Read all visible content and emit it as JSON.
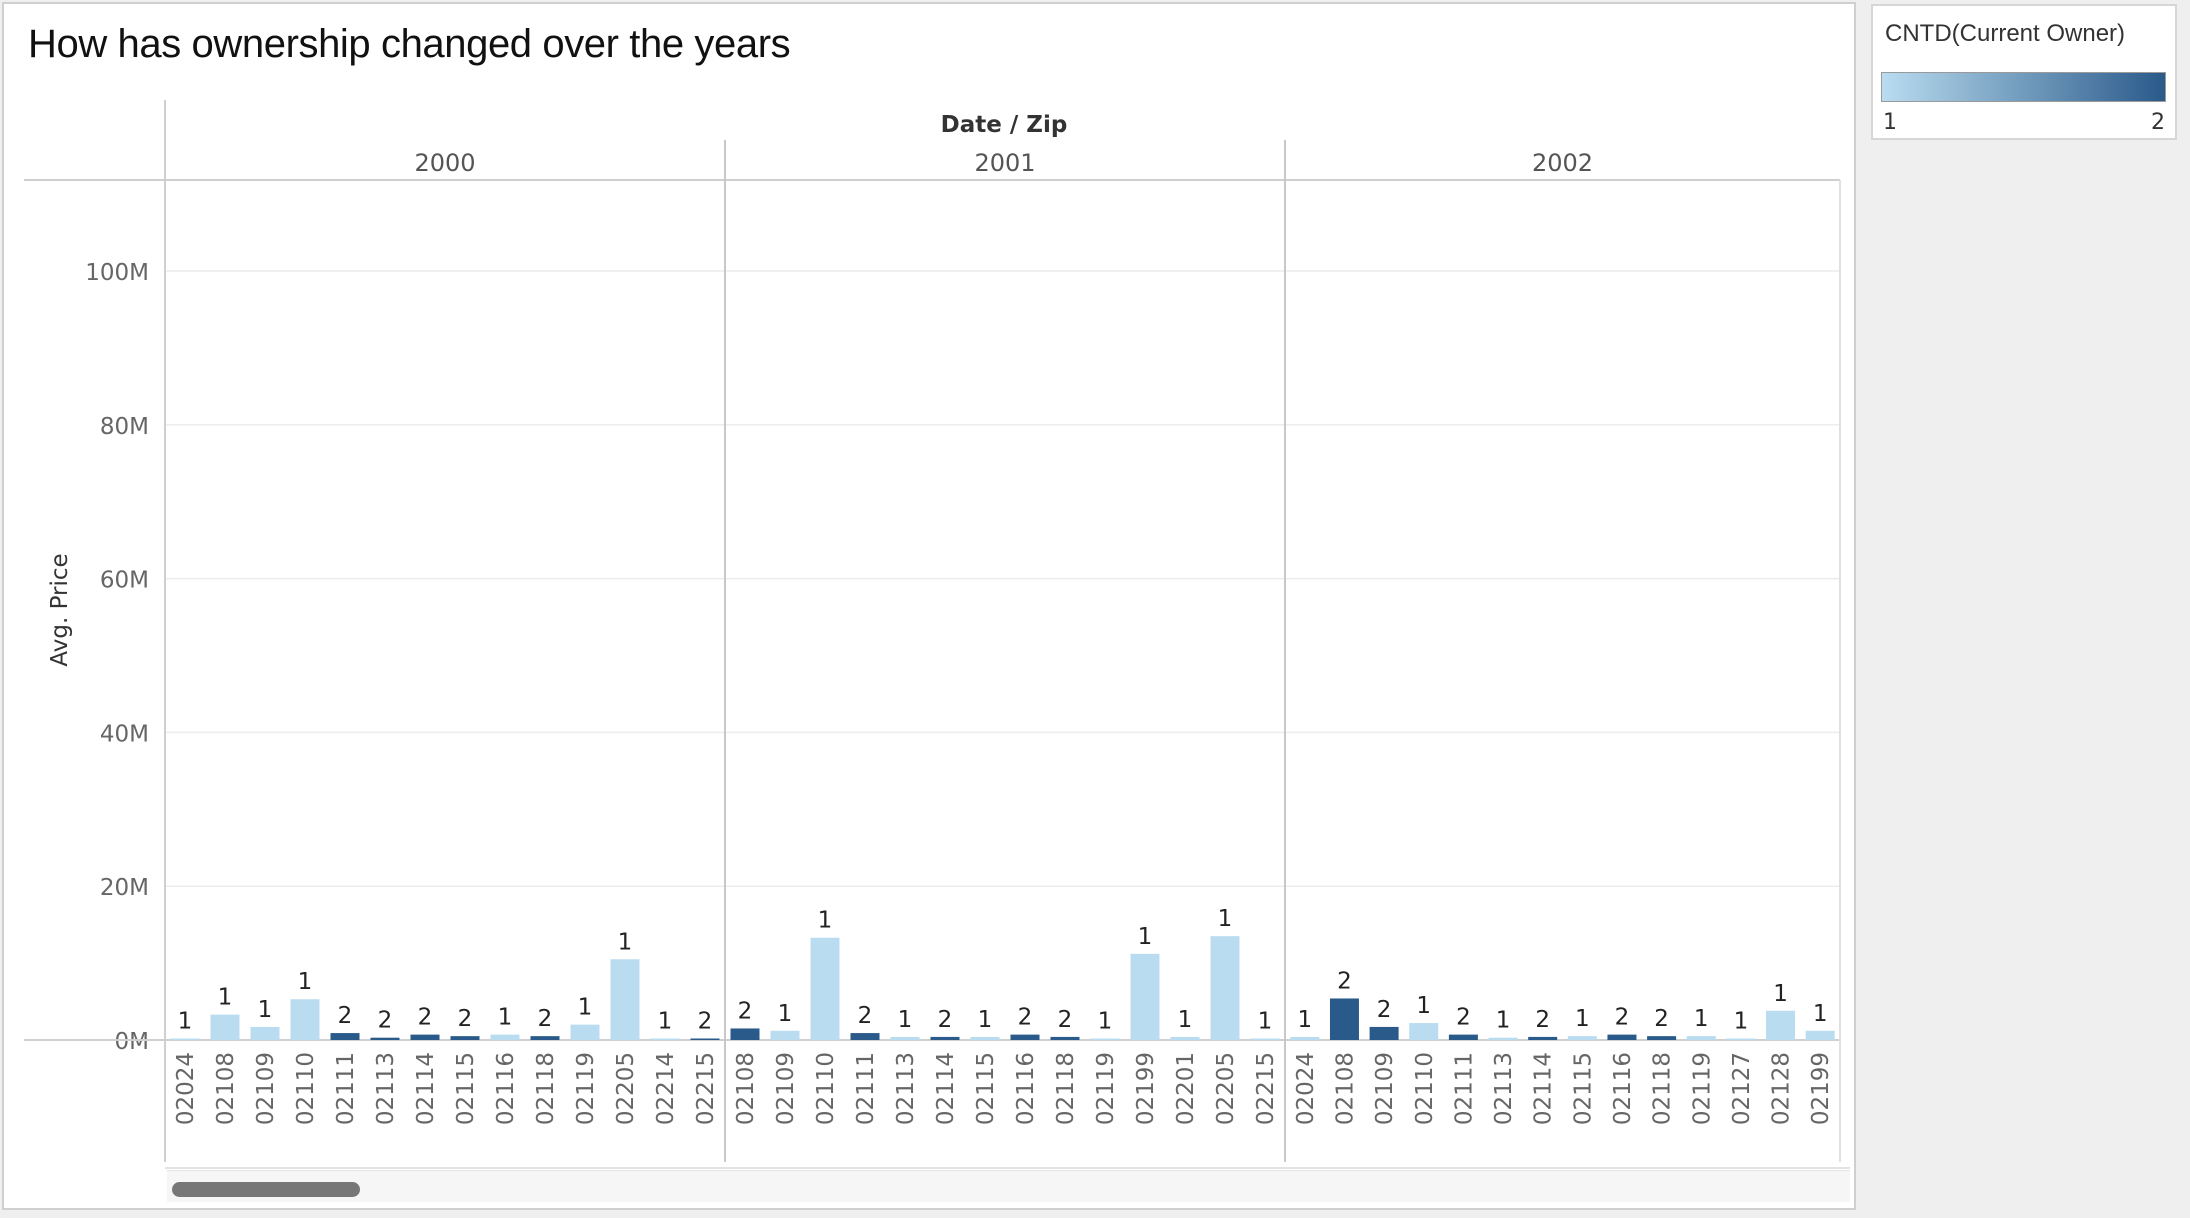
{
  "title": "How has ownership changed over the years",
  "legend": {
    "title": "CNTD(Current Owner)",
    "min_label": "1",
    "max_label": "2",
    "color_low": "#b9dcf0",
    "color_high": "#2a5a8a"
  },
  "chart_data": {
    "type": "bar",
    "title": "How has ownership changed over the years",
    "column_header": "Date / Zip",
    "ylabel": "Avg. Price",
    "ylim": [
      0,
      110000000
    ],
    "yticks": [
      0,
      20000000,
      40000000,
      60000000,
      80000000,
      100000000
    ],
    "ytick_labels": [
      "0M",
      "20M",
      "40M",
      "60M",
      "80M",
      "100M"
    ],
    "grid": true,
    "legend_position": "top-right",
    "panels": [
      {
        "year": "2000",
        "bars": [
          {
            "zip": "02024",
            "value": 100000,
            "count": 1
          },
          {
            "zip": "02108",
            "value": 3300000,
            "count": 1
          },
          {
            "zip": "02109",
            "value": 1700000,
            "count": 1
          },
          {
            "zip": "02110",
            "value": 5300000,
            "count": 1
          },
          {
            "zip": "02111",
            "value": 900000,
            "count": 2
          },
          {
            "zip": "02113",
            "value": 300000,
            "count": 2
          },
          {
            "zip": "02114",
            "value": 700000,
            "count": 2
          },
          {
            "zip": "02115",
            "value": 500000,
            "count": 2
          },
          {
            "zip": "02116",
            "value": 700000,
            "count": 1
          },
          {
            "zip": "02118",
            "value": 500000,
            "count": 2
          },
          {
            "zip": "02119",
            "value": 2000000,
            "count": 1
          },
          {
            "zip": "02205",
            "value": 10500000,
            "count": 1
          },
          {
            "zip": "02214",
            "value": 100000,
            "count": 1
          },
          {
            "zip": "02215",
            "value": 100000,
            "count": 2
          }
        ]
      },
      {
        "year": "2001",
        "bars": [
          {
            "zip": "02108",
            "value": 1500000,
            "count": 2
          },
          {
            "zip": "02109",
            "value": 1200000,
            "count": 1
          },
          {
            "zip": "02110",
            "value": 13300000,
            "count": 1
          },
          {
            "zip": "02111",
            "value": 900000,
            "count": 2
          },
          {
            "zip": "02113",
            "value": 400000,
            "count": 1
          },
          {
            "zip": "02114",
            "value": 400000,
            "count": 2
          },
          {
            "zip": "02115",
            "value": 400000,
            "count": 1
          },
          {
            "zip": "02116",
            "value": 700000,
            "count": 2
          },
          {
            "zip": "02118",
            "value": 400000,
            "count": 2
          },
          {
            "zip": "02119",
            "value": 100000,
            "count": 1
          },
          {
            "zip": "02199",
            "value": 11200000,
            "count": 1
          },
          {
            "zip": "02201",
            "value": 400000,
            "count": 1
          },
          {
            "zip": "02205",
            "value": 13500000,
            "count": 1
          },
          {
            "zip": "02215",
            "value": 200000,
            "count": 1
          }
        ]
      },
      {
        "year": "2002",
        "bars": [
          {
            "zip": "02024",
            "value": 400000,
            "count": 1
          },
          {
            "zip": "02108",
            "value": 5400000,
            "count": 2
          },
          {
            "zip": "02109",
            "value": 1700000,
            "count": 2
          },
          {
            "zip": "02110",
            "value": 2200000,
            "count": 1
          },
          {
            "zip": "02111",
            "value": 700000,
            "count": 2
          },
          {
            "zip": "02113",
            "value": 300000,
            "count": 1
          },
          {
            "zip": "02114",
            "value": 400000,
            "count": 2
          },
          {
            "zip": "02115",
            "value": 500000,
            "count": 1
          },
          {
            "zip": "02116",
            "value": 700000,
            "count": 2
          },
          {
            "zip": "02118",
            "value": 500000,
            "count": 2
          },
          {
            "zip": "02119",
            "value": 500000,
            "count": 1
          },
          {
            "zip": "02127",
            "value": 100000,
            "count": 1
          },
          {
            "zip": "02128",
            "value": 3800000,
            "count": 1
          },
          {
            "zip": "02199",
            "value": 1200000,
            "count": 1
          }
        ]
      }
    ]
  }
}
